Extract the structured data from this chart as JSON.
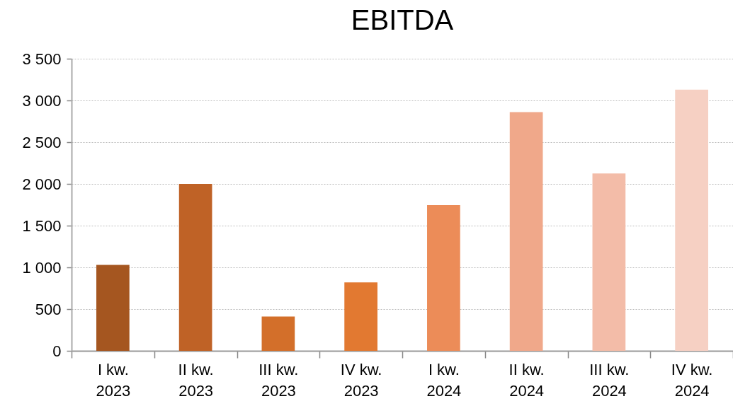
{
  "chart_data": {
    "type": "bar",
    "title": "EBITDA",
    "categories": [
      "I kw. 2023",
      "II kw. 2023",
      "III kw. 2023",
      "IV kw. 2023",
      "I kw. 2024",
      "II kw. 2024",
      "III kw. 2024",
      "IV kw. 2024"
    ],
    "values": [
      1030,
      2000,
      410,
      820,
      1745,
      2860,
      2125,
      3130
    ],
    "colors": [
      "#a55620",
      "#bf6226",
      "#d36f2a",
      "#e27931",
      "#ec8c58",
      "#f0a88a",
      "#f3bca8",
      "#f6d0c3"
    ],
    "ylim": [
      0,
      3500
    ],
    "yticks": [
      {
        "value": 0,
        "label": "0"
      },
      {
        "value": 500,
        "label": "500"
      },
      {
        "value": 1000,
        "label": "1 000"
      },
      {
        "value": 1500,
        "label": "1 500"
      },
      {
        "value": 2000,
        "label": "2 000"
      },
      {
        "value": 2500,
        "label": "2 500"
      },
      {
        "value": 3000,
        "label": "3 000"
      },
      {
        "value": 3500,
        "label": "3 500"
      }
    ],
    "grid": "y"
  }
}
